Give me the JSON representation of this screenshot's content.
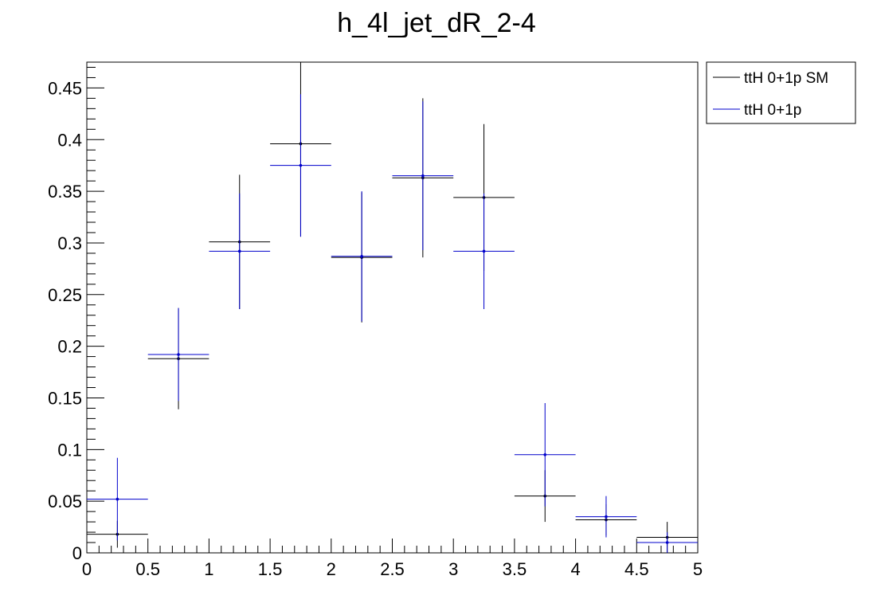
{
  "chart_data": {
    "type": "scatter",
    "title": "h_4l_jet_dR_2-4",
    "xlabel": "",
    "ylabel": "",
    "xlim": [
      0,
      5
    ],
    "ylim": [
      0,
      0.475
    ],
    "bin_width": 0.5,
    "x_ticks": [
      "0",
      "0.5",
      "1",
      "1.5",
      "2",
      "2.5",
      "3",
      "3.5",
      "4",
      "4.5",
      "5"
    ],
    "y_ticks": [
      "0",
      "0.05",
      "0.1",
      "0.15",
      "0.2",
      "0.25",
      "0.3",
      "0.35",
      "0.4",
      "0.45"
    ],
    "legend_position": "top-right, outside plot",
    "series": [
      {
        "name": "ttH 0+1p SM",
        "color": "#000000",
        "x": [
          0.25,
          0.75,
          1.25,
          1.75,
          2.25,
          2.75,
          3.25,
          3.75,
          4.25,
          4.75
        ],
        "y": [
          0.018,
          0.188,
          0.301,
          0.396,
          0.286,
          0.363,
          0.344,
          0.055,
          0.032,
          0.015
        ],
        "yerr": [
          0.013,
          0.049,
          0.065,
          0.09,
          0.063,
          0.077,
          0.071,
          0.025,
          0.015,
          0.015
        ]
      },
      {
        "name": "ttH 0+1p",
        "color": "#0000cc",
        "x": [
          0.25,
          0.75,
          1.25,
          1.75,
          2.25,
          2.75,
          3.25,
          3.75,
          4.25,
          4.75
        ],
        "y": [
          0.052,
          0.192,
          0.292,
          0.375,
          0.287,
          0.365,
          0.292,
          0.095,
          0.035,
          0.01
        ],
        "yerr": [
          0.04,
          0.045,
          0.056,
          0.069,
          0.063,
          0.072,
          0.056,
          0.05,
          0.02,
          0.01
        ]
      }
    ]
  }
}
